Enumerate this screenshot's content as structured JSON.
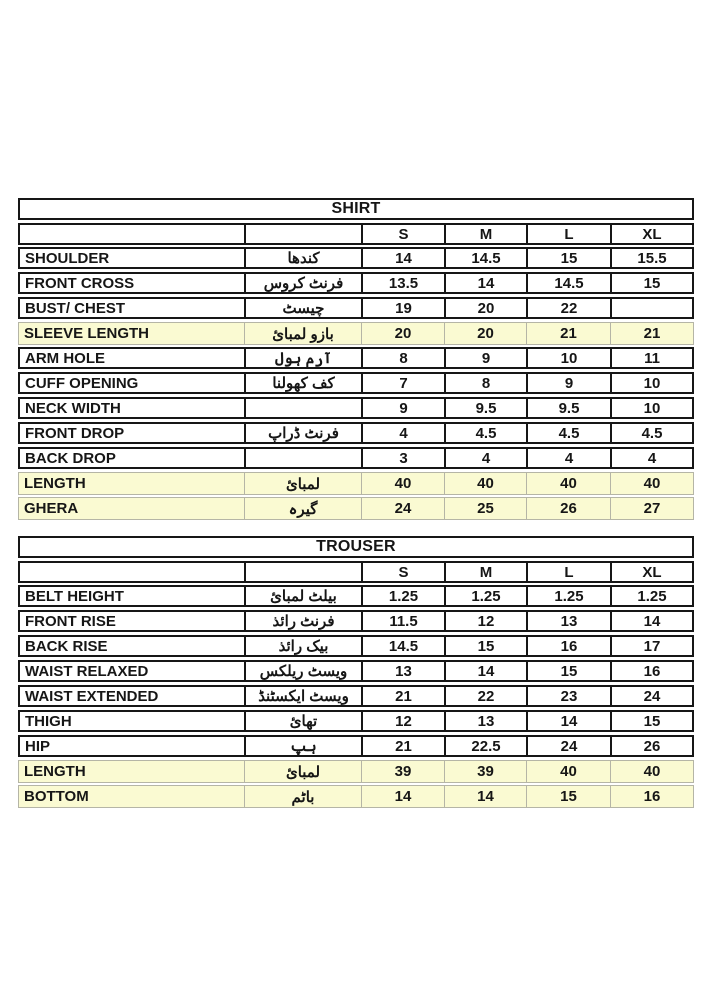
{
  "page": {
    "background": "#ffffff"
  },
  "colors": {
    "highlight_row": "#FAFAD2",
    "table_border": "#161616",
    "highlight_border": "#b5b5a6",
    "text": "#161616"
  },
  "sizes": [
    "S",
    "M",
    "L",
    "XL"
  ],
  "shirt": {
    "title": "SHIRT",
    "rows": [
      {
        "label": "SHOULDER",
        "urdu": "کندھا",
        "values": [
          "14",
          "14.5",
          "15",
          "15.5"
        ],
        "highlighted": false
      },
      {
        "label": "FRONT CROSS",
        "urdu": "فرنٹ کروس",
        "values": [
          "13.5",
          "14",
          "14.5",
          "15"
        ],
        "highlighted": false
      },
      {
        "label": "BUST/ CHEST",
        "urdu": "چیسٹ",
        "values": [
          "19",
          "20",
          "22",
          ""
        ],
        "highlighted": false
      },
      {
        "label": "SLEEVE LENGTH",
        "urdu": "بازو لمبائ",
        "values": [
          "20",
          "20",
          "21",
          "21"
        ],
        "highlighted": true
      },
      {
        "label": "ARM HOLE",
        "urdu": "آرم ہول",
        "values": [
          "8",
          "9",
          "10",
          "11"
        ],
        "highlighted": false
      },
      {
        "label": "CUFF OPENING",
        "urdu": "کف کھولنا",
        "values": [
          "7",
          "8",
          "9",
          "10"
        ],
        "highlighted": false
      },
      {
        "label": "NECK WIDTH",
        "urdu": "",
        "values": [
          "9",
          "9.5",
          "9.5",
          "10"
        ],
        "highlighted": false
      },
      {
        "label": "FRONT DROP",
        "urdu": "فرنٹ ڈراپ",
        "values": [
          "4",
          "4.5",
          "4.5",
          "4.5"
        ],
        "highlighted": false
      },
      {
        "label": "BACK DROP",
        "urdu": "",
        "values": [
          "3",
          "4",
          "4",
          "4"
        ],
        "highlighted": false
      },
      {
        "label": "LENGTH",
        "urdu": "لمبائ",
        "values": [
          "40",
          "40",
          "40",
          "40"
        ],
        "highlighted": true
      },
      {
        "label": "GHERA",
        "urdu": "گیرہ",
        "values": [
          "24",
          "25",
          "26",
          "27"
        ],
        "highlighted": true
      }
    ]
  },
  "trouser": {
    "title": "TROUSER",
    "rows": [
      {
        "label": "BELT HEIGHT",
        "urdu": "بیلٹ لمبائ",
        "values": [
          "1.25",
          "1.25",
          "1.25",
          "1.25"
        ],
        "highlighted": false
      },
      {
        "label": "FRONT RISE",
        "urdu": "فرنٹ رائذ",
        "values": [
          "11.5",
          "12",
          "13",
          "14"
        ],
        "highlighted": false
      },
      {
        "label": "BACK RISE",
        "urdu": "بیک رائذ",
        "values": [
          "14.5",
          "15",
          "16",
          "17"
        ],
        "highlighted": false
      },
      {
        "label": "WAIST RELAXED",
        "urdu": "ویسٹ ریلکس",
        "values": [
          "13",
          "14",
          "15",
          "16"
        ],
        "highlighted": false
      },
      {
        "label": "WAIST EXTENDED",
        "urdu": "ویسٹ ایکسٹنڈ",
        "values": [
          "21",
          "22",
          "23",
          "24"
        ],
        "highlighted": false
      },
      {
        "label": "THIGH",
        "urdu": "تھائ",
        "values": [
          "12",
          "13",
          "14",
          "15"
        ],
        "highlighted": false
      },
      {
        "label": "HIP",
        "urdu": "ہپ",
        "values": [
          "21",
          "22.5",
          "24",
          "26"
        ],
        "highlighted": false
      },
      {
        "label": "LENGTH",
        "urdu": "لمبائ",
        "values": [
          "39",
          "39",
          "40",
          "40"
        ],
        "highlighted": true
      },
      {
        "label": "BOTTOM",
        "urdu": "باٹم",
        "values": [
          "14",
          "14",
          "15",
          "16"
        ],
        "highlighted": true
      }
    ]
  }
}
